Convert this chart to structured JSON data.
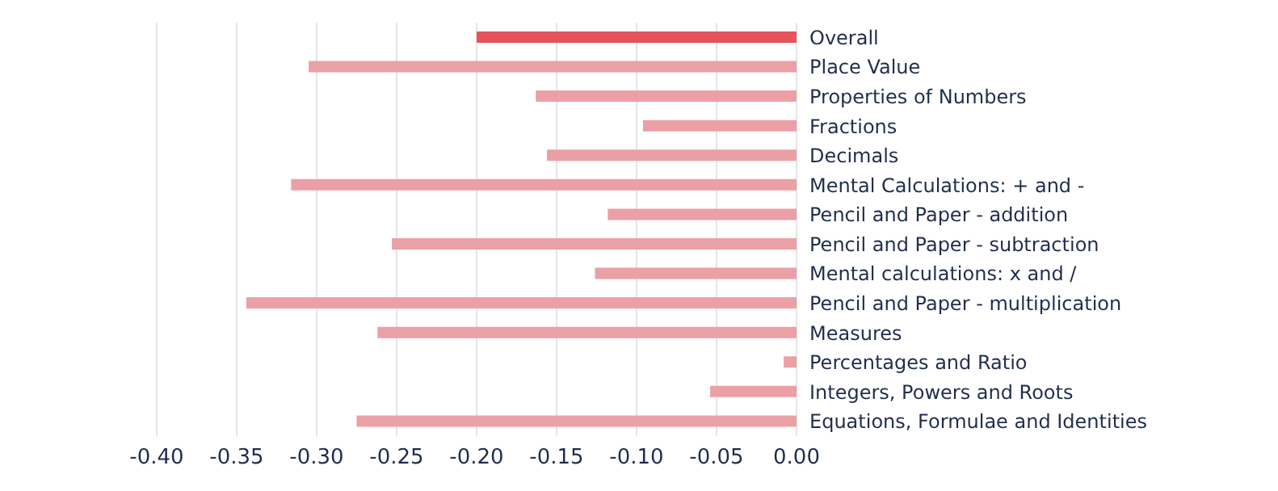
{
  "chart_data": {
    "type": "bar",
    "orientation": "horizontal",
    "categories": [
      "Overall",
      "Place Value",
      "Properties of Numbers",
      "Fractions",
      "Decimals",
      "Mental Calculations: + and -",
      "Pencil and Paper - addition",
      "Pencil and Paper - subtraction",
      "Mental calculations: x and /",
      "Pencil and Paper - multiplication",
      "Measures",
      "Percentages and Ratio",
      "Integers, Powers and Roots",
      "Equations, Formulae and Identities"
    ],
    "values": [
      -0.2,
      -0.305,
      -0.163,
      -0.096,
      -0.156,
      -0.316,
      -0.118,
      -0.253,
      -0.126,
      -0.344,
      -0.262,
      -0.008,
      -0.054,
      -0.275
    ],
    "colors": [
      "#e5535b",
      "#eba0a5",
      "#eba0a5",
      "#eba0a5",
      "#eba0a5",
      "#eba0a5",
      "#eba0a5",
      "#eba0a5",
      "#eba0a5",
      "#eba0a5",
      "#eba0a5",
      "#eba0a5",
      "#eba0a5",
      "#eba0a5"
    ],
    "xlim": [
      -0.4,
      0
    ],
    "xticks": [
      {
        "value": -0.4,
        "label": "-0.40"
      },
      {
        "value": -0.35,
        "label": "-0.35"
      },
      {
        "value": -0.3,
        "label": "-0.30"
      },
      {
        "value": -0.25,
        "label": "-0.25"
      },
      {
        "value": -0.2,
        "label": "-0.20"
      },
      {
        "value": -0.15,
        "label": "-0.15"
      },
      {
        "value": -0.1,
        "label": "-0.10"
      },
      {
        "value": -0.05,
        "label": "-0.05"
      },
      {
        "value": 0,
        "label": "0.00"
      }
    ],
    "grid": "x"
  }
}
